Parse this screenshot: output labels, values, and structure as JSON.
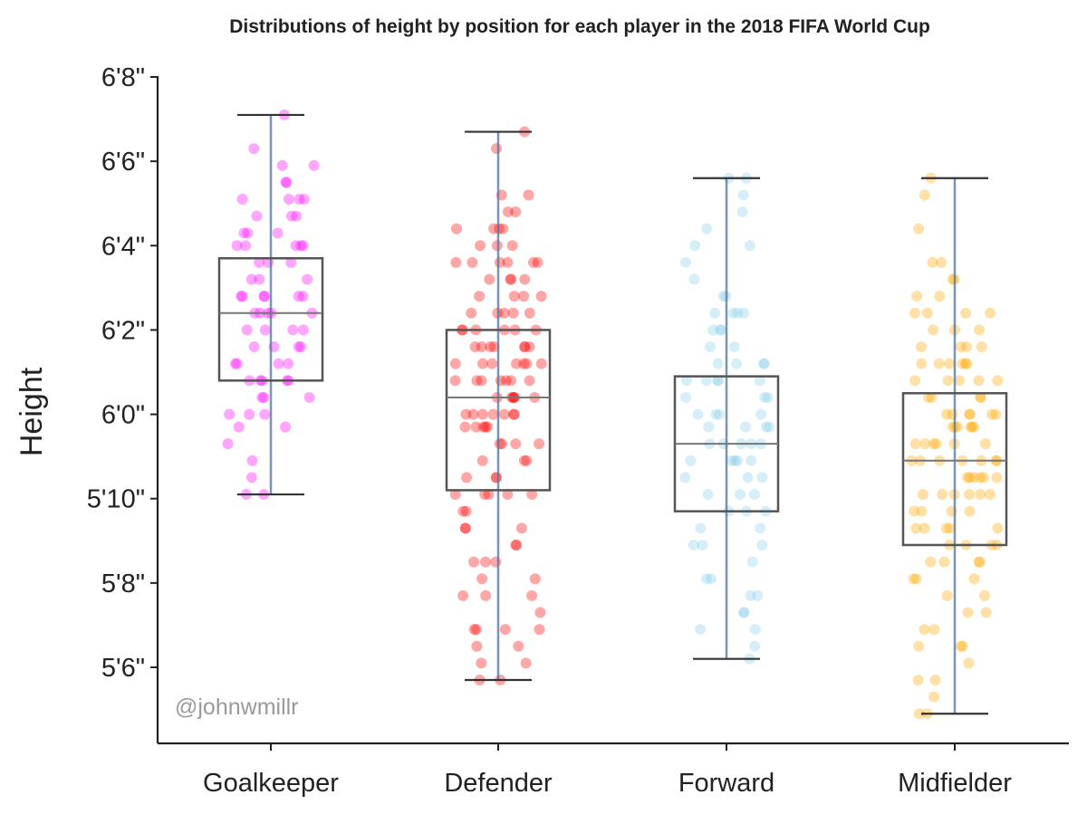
{
  "chart_data": {
    "type": "box",
    "title": "Distributions of height by position for each player in the 2018 FIFA World Cup",
    "xlabel": "",
    "ylabel": "Height",
    "ylim_inches": [
      64.6,
      80.0
    ],
    "y_ticks": [
      {
        "value": 66,
        "label": "5'6\""
      },
      {
        "value": 68,
        "label": "5'8\""
      },
      {
        "value": 70,
        "label": "5'10\""
      },
      {
        "value": 72,
        "label": "6'0\""
      },
      {
        "value": 74,
        "label": "6'2\""
      },
      {
        "value": 76,
        "label": "6'4\""
      },
      {
        "value": 78,
        "label": "6'6\""
      },
      {
        "value": 80,
        "label": "6'8\""
      }
    ],
    "grid": false,
    "watermark": "@johnwmillr",
    "categories": [
      "Goalkeeper",
      "Defender",
      "Forward",
      "Midfielder"
    ],
    "boxes": [
      {
        "name": "Goalkeeper",
        "whisker_low": 70.1,
        "q1": 72.8,
        "median": 74.4,
        "q3": 75.7,
        "whisker_high": 79.1,
        "color": "#ff00ff",
        "points": [
          79.1,
          78.3,
          77.9,
          77.9,
          77.5,
          77.5,
          77.1,
          77.1,
          77.1,
          77.1,
          76.7,
          76.7,
          76.7,
          76.3,
          76.3,
          76.3,
          76.0,
          76.0,
          76.0,
          76.0,
          76.0,
          75.6,
          75.6,
          75.6,
          75.2,
          75.2,
          75.2,
          74.8,
          74.8,
          74.8,
          74.8,
          74.8,
          74.8,
          74.4,
          74.4,
          74.4,
          74.4,
          74.4,
          74.0,
          74.0,
          74.0,
          74.0,
          73.6,
          73.6,
          73.6,
          73.6,
          73.2,
          73.2,
          73.2,
          73.2,
          72.8,
          72.8,
          72.8,
          72.8,
          72.8,
          72.4,
          72.4,
          72.4,
          72.0,
          72.0,
          72.0,
          71.7,
          71.7,
          71.3,
          70.9,
          70.5,
          70.1,
          70.1
        ]
      },
      {
        "name": "Defender",
        "whisker_low": 65.7,
        "q1": 70.2,
        "median": 72.4,
        "q3": 74.0,
        "whisker_high": 78.7,
        "color": "#ff0000",
        "points": [
          78.7,
          78.3,
          77.2,
          77.2,
          76.8,
          76.8,
          76.4,
          76.4,
          76.4,
          76.4,
          76.0,
          76.0,
          76.0,
          75.6,
          75.6,
          75.6,
          75.6,
          75.6,
          75.6,
          75.2,
          75.2,
          75.2,
          75.2,
          74.8,
          74.8,
          74.8,
          74.8,
          74.4,
          74.4,
          74.4,
          74.4,
          74.4,
          74.0,
          74.0,
          74.0,
          74.0,
          74.0,
          74.0,
          73.6,
          73.6,
          73.6,
          73.6,
          73.6,
          73.6,
          73.6,
          73.2,
          73.2,
          73.2,
          73.2,
          73.2,
          73.2,
          73.2,
          72.8,
          72.8,
          72.8,
          72.8,
          72.8,
          72.8,
          72.8,
          72.4,
          72.4,
          72.4,
          72.4,
          72.4,
          72.4,
          72.0,
          72.0,
          72.0,
          72.0,
          72.0,
          72.0,
          72.0,
          71.7,
          71.7,
          71.7,
          71.7,
          71.7,
          71.3,
          71.3,
          71.3,
          71.3,
          70.9,
          70.9,
          70.9,
          70.5,
          70.5,
          70.5,
          70.1,
          70.1,
          70.1,
          70.1,
          70.1,
          69.7,
          69.7,
          69.3,
          69.3,
          69.3,
          68.9,
          68.9,
          68.5,
          68.5,
          68.5,
          68.1,
          68.1,
          67.7,
          67.7,
          67.7,
          67.3,
          66.9,
          66.9,
          66.9,
          66.9,
          66.5,
          66.5,
          66.1,
          66.1,
          65.7,
          65.7
        ]
      },
      {
        "name": "Forward",
        "whisker_low": 66.2,
        "q1": 69.7,
        "median": 71.3,
        "q3": 72.9,
        "whisker_high": 77.6,
        "color": "#87ceeb",
        "points": [
          77.6,
          77.6,
          77.2,
          76.8,
          76.4,
          76.0,
          76.0,
          75.6,
          75.2,
          74.8,
          74.8,
          74.4,
          74.4,
          74.4,
          74.4,
          74.0,
          74.0,
          74.0,
          73.6,
          73.6,
          73.2,
          73.2,
          73.2,
          73.2,
          72.8,
          72.8,
          72.8,
          72.8,
          72.8,
          72.4,
          72.4,
          72.4,
          72.0,
          72.0,
          72.0,
          72.0,
          71.7,
          71.7,
          71.7,
          71.7,
          71.3,
          71.3,
          71.3,
          71.3,
          71.3,
          70.9,
          70.9,
          70.9,
          70.9,
          70.9,
          70.5,
          70.5,
          70.5,
          70.1,
          70.1,
          70.1,
          69.7,
          69.7,
          69.7,
          69.3,
          69.3,
          68.9,
          68.9,
          68.9,
          68.5,
          68.1,
          68.1,
          67.7,
          67.7,
          67.3,
          67.3,
          66.9,
          66.9,
          66.5,
          66.2
        ]
      },
      {
        "name": "Midfielder",
        "whisker_low": 64.9,
        "q1": 68.9,
        "median": 70.9,
        "q3": 72.5,
        "whisker_high": 77.6,
        "color": "#ffa500",
        "points": [
          77.6,
          77.2,
          76.4,
          75.6,
          75.6,
          75.2,
          75.2,
          74.8,
          74.8,
          74.4,
          74.4,
          74.4,
          74.4,
          74.0,
          74.0,
          74.0,
          73.6,
          73.6,
          73.6,
          73.6,
          73.2,
          73.2,
          73.2,
          73.2,
          73.2,
          73.2,
          72.8,
          72.8,
          72.8,
          72.8,
          72.8,
          72.4,
          72.4,
          72.4,
          72.4,
          72.0,
          72.0,
          72.0,
          72.0,
          72.0,
          72.0,
          71.7,
          71.7,
          71.7,
          71.7,
          71.7,
          71.7,
          71.3,
          71.3,
          71.3,
          71.3,
          71.3,
          71.3,
          70.9,
          70.9,
          70.9,
          70.9,
          70.9,
          70.9,
          70.9,
          70.5,
          70.5,
          70.5,
          70.5,
          70.5,
          70.5,
          70.1,
          70.1,
          70.1,
          70.1,
          70.1,
          70.1,
          69.7,
          69.7,
          69.7,
          69.7,
          69.3,
          69.3,
          69.3,
          69.3,
          69.3,
          68.9,
          68.9,
          68.9,
          68.9,
          68.5,
          68.5,
          68.5,
          68.5,
          68.1,
          68.1,
          68.1,
          67.7,
          67.7,
          67.3,
          67.3,
          66.9,
          66.9,
          66.5,
          66.5,
          66.5,
          66.1,
          65.7,
          65.7,
          65.3,
          64.9,
          64.9
        ]
      }
    ]
  }
}
